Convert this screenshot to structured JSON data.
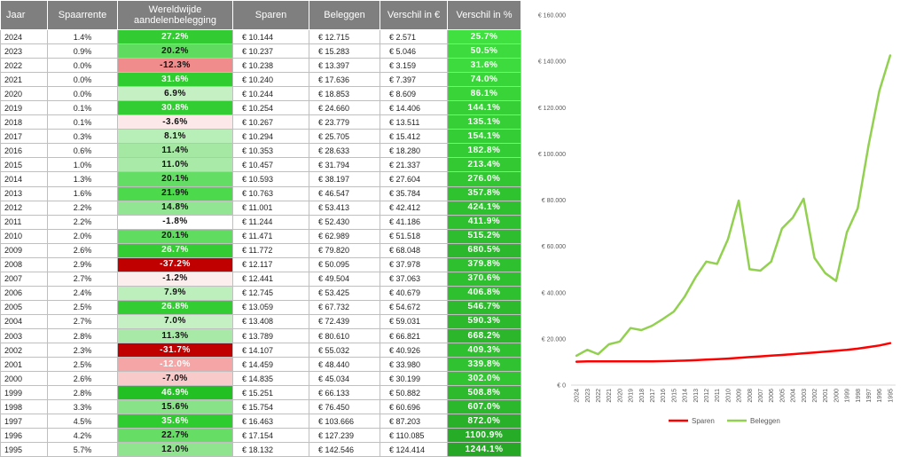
{
  "table": {
    "headers": [
      "Jaar",
      "Spaarrente",
      "Wereldwijde aandelenbelegging",
      "Sparen",
      "Beleggen",
      "Verschil in €",
      "Verschil in %"
    ],
    "rows": [
      [
        "2024",
        "1.4%",
        "27.2%",
        "€ 10.144",
        "€ 12.715",
        "€ 2.571",
        "25.7%"
      ],
      [
        "2023",
        "0.9%",
        "20.2%",
        "€ 10.237",
        "€ 15.283",
        "€ 5.046",
        "50.5%"
      ],
      [
        "2022",
        "0.0%",
        "-12.3%",
        "€ 10.238",
        "€ 13.397",
        "€ 3.159",
        "31.6%"
      ],
      [
        "2021",
        "0.0%",
        "31.6%",
        "€ 10.240",
        "€ 17.636",
        "€ 7.397",
        "74.0%"
      ],
      [
        "2020",
        "0.0%",
        "6.9%",
        "€ 10.244",
        "€ 18.853",
        "€ 8.609",
        "86.1%"
      ],
      [
        "2019",
        "0.1%",
        "30.8%",
        "€ 10.254",
        "€ 24.660",
        "€ 14.406",
        "144.1%"
      ],
      [
        "2018",
        "0.1%",
        "-3.6%",
        "€ 10.267",
        "€ 23.779",
        "€ 13.511",
        "135.1%"
      ],
      [
        "2017",
        "0.3%",
        "8.1%",
        "€ 10.294",
        "€ 25.705",
        "€ 15.412",
        "154.1%"
      ],
      [
        "2016",
        "0.6%",
        "11.4%",
        "€ 10.353",
        "€ 28.633",
        "€ 18.280",
        "182.8%"
      ],
      [
        "2015",
        "1.0%",
        "11.0%",
        "€ 10.457",
        "€ 31.794",
        "€ 21.337",
        "213.4%"
      ],
      [
        "2014",
        "1.3%",
        "20.1%",
        "€ 10.593",
        "€ 38.197",
        "€ 27.604",
        "276.0%"
      ],
      [
        "2013",
        "1.6%",
        "21.9%",
        "€ 10.763",
        "€ 46.547",
        "€ 35.784",
        "357.8%"
      ],
      [
        "2012",
        "2.2%",
        "14.8%",
        "€ 11.001",
        "€ 53.413",
        "€ 42.412",
        "424.1%"
      ],
      [
        "2011",
        "2.2%",
        "-1.8%",
        "€ 11.244",
        "€ 52.430",
        "€ 41.186",
        "411.9%"
      ],
      [
        "2010",
        "2.0%",
        "20.1%",
        "€ 11.471",
        "€ 62.989",
        "€ 51.518",
        "515.2%"
      ],
      [
        "2009",
        "2.6%",
        "26.7%",
        "€ 11.772",
        "€ 79.820",
        "€ 68.048",
        "680.5%"
      ],
      [
        "2008",
        "2.9%",
        "-37.2%",
        "€ 12.117",
        "€ 50.095",
        "€ 37.978",
        "379.8%"
      ],
      [
        "2007",
        "2.7%",
        "-1.2%",
        "€ 12.441",
        "€ 49.504",
        "€ 37.063",
        "370.6%"
      ],
      [
        "2006",
        "2.4%",
        "7.9%",
        "€ 12.745",
        "€ 53.425",
        "€ 40.679",
        "406.8%"
      ],
      [
        "2005",
        "2.5%",
        "26.8%",
        "€ 13.059",
        "€ 67.732",
        "€ 54.672",
        "546.7%"
      ],
      [
        "2004",
        "2.7%",
        "7.0%",
        "€ 13.408",
        "€ 72.439",
        "€ 59.031",
        "590.3%"
      ],
      [
        "2003",
        "2.8%",
        "11.3%",
        "€ 13.789",
        "€ 80.610",
        "€ 66.821",
        "668.2%"
      ],
      [
        "2002",
        "2.3%",
        "-31.7%",
        "€ 14.107",
        "€ 55.032",
        "€ 40.926",
        "409.3%"
      ],
      [
        "2001",
        "2.5%",
        "-12.0%",
        "€ 14.459",
        "€ 48.440",
        "€ 33.980",
        "339.8%"
      ],
      [
        "2000",
        "2.6%",
        "-7.0%",
        "€ 14.835",
        "€ 45.034",
        "€ 30.199",
        "302.0%"
      ],
      [
        "1999",
        "2.8%",
        "46.9%",
        "€ 15.251",
        "€ 66.133",
        "€ 50.882",
        "508.8%"
      ],
      [
        "1998",
        "3.3%",
        "15.6%",
        "€ 15.754",
        "€ 76.450",
        "€ 60.696",
        "607.0%"
      ],
      [
        "1997",
        "4.5%",
        "35.6%",
        "€ 16.463",
        "€ 103.666",
        "€ 87.203",
        "872.0%"
      ],
      [
        "1996",
        "4.2%",
        "22.7%",
        "€ 17.154",
        "€ 127.239",
        "€ 110.085",
        "1100.9%"
      ],
      [
        "1995",
        "5.7%",
        "12.0%",
        "€ 18.132",
        "€ 142.546",
        "€ 124.414",
        "1244.1%"
      ]
    ],
    "return_colors": [
      "#32cc32",
      "#5fdc5f",
      "#f08c8c",
      "#30cd30",
      "#c4f0c4",
      "#32cd32",
      "#fce8e8",
      "#b8eeb8",
      "#a4e8a4",
      "#a9eaa9",
      "#64dd64",
      "#4cd94c",
      "#92e592",
      "#ffffff",
      "#60dd60",
      "#33cd33",
      "#c00000",
      "#fdeeee",
      "#bdefbd",
      "#33cd33",
      "#c4f0c4",
      "#a8e9a8",
      "#c00000",
      "#f5a5a5",
      "#f8caca",
      "#22c022",
      "#88e388",
      "#2ecc2e",
      "#66de66",
      "#90e490"
    ],
    "return_text_colors": [
      "#ffffff",
      "#111111",
      "#111111",
      "#ffffff",
      "#111111",
      "#ffffff",
      "#111111",
      "#111111",
      "#111111",
      "#111111",
      "#111111",
      "#111111",
      "#111111",
      "#111111",
      "#111111",
      "#ffffff",
      "#ffffff",
      "#111111",
      "#111111",
      "#ffffff",
      "#111111",
      "#111111",
      "#ffffff",
      "#ffffff",
      "#111111",
      "#ffffff",
      "#111111",
      "#ffffff",
      "#111111",
      "#111111"
    ],
    "pct_colors": [
      "#40e040",
      "#3ddb3d",
      "#3ddb3d",
      "#39d639",
      "#38d438",
      "#36d036",
      "#36d036",
      "#35cd35",
      "#34cc34",
      "#33c933",
      "#32c632",
      "#30c330",
      "#2fc02f",
      "#2fc02f",
      "#2ebd2e",
      "#2cb82c",
      "#2ec02e",
      "#2ec02e",
      "#2fc02f",
      "#2dbb2d",
      "#2cb92c",
      "#2bb62b",
      "#2fc02f",
      "#30c230",
      "#31c531",
      "#2dbb2d",
      "#2cb82c",
      "#29b229",
      "#27ac27",
      "#26a826"
    ]
  },
  "chart_data": {
    "type": "line",
    "x": [
      "2024",
      "2023",
      "2022",
      "2021",
      "2020",
      "2019",
      "2018",
      "2017",
      "2016",
      "2015",
      "2014",
      "2013",
      "2012",
      "2011",
      "2010",
      "2009",
      "2008",
      "2007",
      "2006",
      "2005",
      "2004",
      "2003",
      "2002",
      "2001",
      "2000",
      "1999",
      "1998",
      "1997",
      "1996",
      "1995"
    ],
    "series": [
      {
        "name": "Sparen",
        "color": "#ff0000",
        "values": [
          10144,
          10237,
          10238,
          10240,
          10244,
          10254,
          10267,
          10294,
          10353,
          10457,
          10593,
          10763,
          11001,
          11244,
          11471,
          11772,
          12117,
          12441,
          12745,
          13059,
          13408,
          13789,
          14107,
          14459,
          14835,
          15251,
          15754,
          16463,
          17154,
          18132
        ]
      },
      {
        "name": "Beleggen",
        "color": "#92d050",
        "values": [
          12715,
          15283,
          13397,
          17636,
          18853,
          24660,
          23779,
          25705,
          28633,
          31794,
          38197,
          46547,
          53413,
          52430,
          62989,
          79820,
          50095,
          49504,
          53425,
          67732,
          72439,
          80610,
          55032,
          48440,
          45034,
          66133,
          76450,
          103666,
          127239,
          142546
        ]
      }
    ],
    "ylim": [
      0,
      160000
    ],
    "y_ticks": [
      "€ 0",
      "€ 20.000",
      "€ 40.000",
      "€ 60.000",
      "€ 80.000",
      "€ 100.000",
      "€ 120.000",
      "€ 140.000",
      "€ 160.000"
    ],
    "grid": false,
    "legend": "bottom"
  }
}
